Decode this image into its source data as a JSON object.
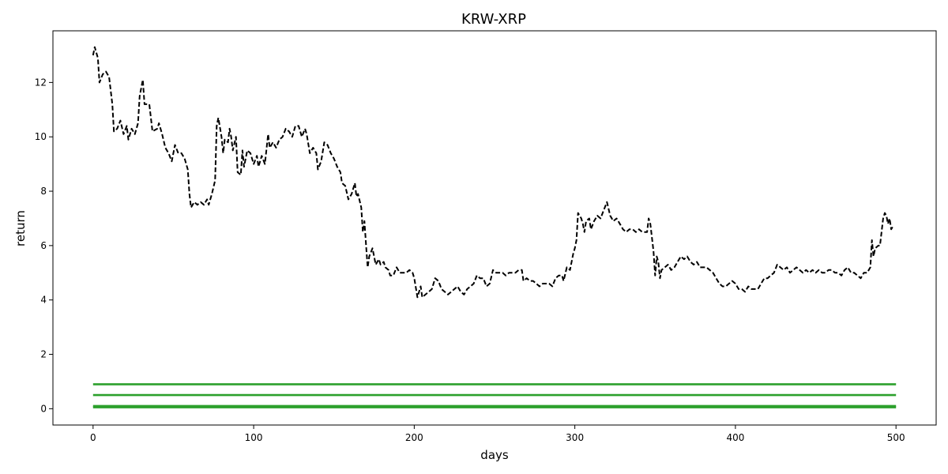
{
  "chart_data": {
    "type": "line",
    "title": "KRW-XRP",
    "xlabel": "days",
    "ylabel": "return",
    "xlim": [
      -25,
      525
    ],
    "ylim": [
      -0.6,
      13.9
    ],
    "xticks": [
      0,
      100,
      200,
      300,
      400,
      500
    ],
    "yticks": [
      0,
      2,
      4,
      6,
      8,
      10,
      12
    ],
    "grid": false,
    "legend": "none",
    "colors": {
      "price": "#000000",
      "levels": "#2ca02c"
    },
    "series": [
      {
        "style": "dashed",
        "color": "#000000",
        "points": [
          [
            0,
            13.0
          ],
          [
            1,
            13.3
          ],
          [
            3,
            12.9
          ],
          [
            4,
            12.0
          ],
          [
            6,
            12.3
          ],
          [
            8,
            12.4
          ],
          [
            10,
            12.2
          ],
          [
            12,
            11.2
          ],
          [
            13,
            10.2
          ],
          [
            15,
            10.3
          ],
          [
            17,
            10.6
          ],
          [
            19,
            10.1
          ],
          [
            21,
            10.4
          ],
          [
            22,
            9.9
          ],
          [
            24,
            10.3
          ],
          [
            26,
            10.1
          ],
          [
            28,
            10.5
          ],
          [
            29,
            11.5
          ],
          [
            31,
            12.1
          ],
          [
            32,
            11.2
          ],
          [
            35,
            11.2
          ],
          [
            37,
            10.2
          ],
          [
            40,
            10.3
          ],
          [
            41,
            10.5
          ],
          [
            43,
            10.1
          ],
          [
            45,
            9.6
          ],
          [
            47,
            9.4
          ],
          [
            49,
            9.1
          ],
          [
            51,
            9.7
          ],
          [
            53,
            9.4
          ],
          [
            55,
            9.4
          ],
          [
            57,
            9.2
          ],
          [
            59,
            8.8
          ],
          [
            60,
            7.9
          ],
          [
            61,
            7.4
          ],
          [
            63,
            7.6
          ],
          [
            65,
            7.5
          ],
          [
            67,
            7.6
          ],
          [
            69,
            7.5
          ],
          [
            71,
            7.7
          ],
          [
            72,
            7.5
          ],
          [
            74,
            7.9
          ],
          [
            76,
            8.4
          ],
          [
            77,
            10.4
          ],
          [
            78,
            10.7
          ],
          [
            80,
            10.0
          ],
          [
            81,
            9.4
          ],
          [
            82,
            9.9
          ],
          [
            84,
            9.8
          ],
          [
            85,
            10.3
          ],
          [
            86,
            10.0
          ],
          [
            87,
            9.5
          ],
          [
            89,
            10.0
          ],
          [
            90,
            8.7
          ],
          [
            92,
            8.6
          ],
          [
            93,
            9.5
          ],
          [
            94,
            8.9
          ],
          [
            96,
            9.5
          ],
          [
            98,
            9.4
          ],
          [
            100,
            9.0
          ],
          [
            102,
            9.3
          ],
          [
            103,
            8.9
          ],
          [
            105,
            9.3
          ],
          [
            107,
            9.0
          ],
          [
            109,
            10.1
          ],
          [
            110,
            9.6
          ],
          [
            112,
            9.8
          ],
          [
            114,
            9.6
          ],
          [
            116,
            9.9
          ],
          [
            118,
            10.0
          ],
          [
            120,
            10.3
          ],
          [
            122,
            10.2
          ],
          [
            124,
            10.0
          ],
          [
            126,
            10.4
          ],
          [
            128,
            10.4
          ],
          [
            130,
            10.0
          ],
          [
            132,
            10.3
          ],
          [
            133,
            10.1
          ],
          [
            135,
            9.4
          ],
          [
            137,
            9.6
          ],
          [
            139,
            9.4
          ],
          [
            140,
            8.8
          ],
          [
            142,
            9.1
          ],
          [
            144,
            9.8
          ],
          [
            146,
            9.7
          ],
          [
            148,
            9.4
          ],
          [
            150,
            9.2
          ],
          [
            152,
            8.9
          ],
          [
            154,
            8.7
          ],
          [
            155,
            8.3
          ],
          [
            157,
            8.2
          ],
          [
            159,
            7.7
          ],
          [
            161,
            7.9
          ],
          [
            163,
            8.3
          ],
          [
            164,
            7.8
          ],
          [
            165,
            7.9
          ],
          [
            167,
            7.4
          ],
          [
            168,
            6.5
          ],
          [
            169,
            6.9
          ],
          [
            170,
            6.0
          ],
          [
            171,
            5.2
          ],
          [
            172,
            5.6
          ],
          [
            174,
            5.9
          ],
          [
            176,
            5.3
          ],
          [
            178,
            5.5
          ],
          [
            179,
            5.3
          ],
          [
            181,
            5.4
          ],
          [
            182,
            5.2
          ],
          [
            184,
            5.1
          ],
          [
            185,
            4.9
          ],
          [
            187,
            4.9
          ],
          [
            189,
            5.2
          ],
          [
            191,
            5.0
          ],
          [
            193,
            5.0
          ],
          [
            195,
            5.0
          ],
          [
            197,
            5.1
          ],
          [
            199,
            5.0
          ],
          [
            200,
            4.8
          ],
          [
            202,
            4.1
          ],
          [
            204,
            4.5
          ],
          [
            205,
            4.1
          ],
          [
            207,
            4.2
          ],
          [
            209,
            4.3
          ],
          [
            211,
            4.4
          ],
          [
            213,
            4.8
          ],
          [
            215,
            4.7
          ],
          [
            217,
            4.4
          ],
          [
            219,
            4.3
          ],
          [
            221,
            4.2
          ],
          [
            223,
            4.3
          ],
          [
            225,
            4.4
          ],
          [
            227,
            4.5
          ],
          [
            229,
            4.3
          ],
          [
            231,
            4.2
          ],
          [
            233,
            4.4
          ],
          [
            235,
            4.5
          ],
          [
            237,
            4.6
          ],
          [
            239,
            4.9
          ],
          [
            241,
            4.8
          ],
          [
            243,
            4.8
          ],
          [
            245,
            4.5
          ],
          [
            247,
            4.6
          ],
          [
            249,
            5.1
          ],
          [
            251,
            5.0
          ],
          [
            253,
            5.0
          ],
          [
            255,
            5.0
          ],
          [
            257,
            4.9
          ],
          [
            259,
            5.0
          ],
          [
            261,
            5.0
          ],
          [
            263,
            5.0
          ],
          [
            265,
            5.1
          ],
          [
            267,
            5.1
          ],
          [
            268,
            4.7
          ],
          [
            270,
            4.8
          ],
          [
            272,
            4.7
          ],
          [
            274,
            4.7
          ],
          [
            276,
            4.6
          ],
          [
            278,
            4.5
          ],
          [
            280,
            4.6
          ],
          [
            282,
            4.6
          ],
          [
            284,
            4.6
          ],
          [
            286,
            4.5
          ],
          [
            288,
            4.8
          ],
          [
            290,
            4.9
          ],
          [
            292,
            4.9
          ],
          [
            293,
            4.7
          ],
          [
            295,
            5.2
          ],
          [
            297,
            5.1
          ],
          [
            299,
            5.7
          ],
          [
            300,
            5.9
          ],
          [
            301,
            6.2
          ],
          [
            302,
            7.2
          ],
          [
            304,
            7.0
          ],
          [
            305,
            6.8
          ],
          [
            306,
            6.5
          ],
          [
            307,
            6.9
          ],
          [
            309,
            7.0
          ],
          [
            310,
            6.6
          ],
          [
            312,
            6.9
          ],
          [
            314,
            7.1
          ],
          [
            316,
            7.0
          ],
          [
            318,
            7.3
          ],
          [
            320,
            7.6
          ],
          [
            322,
            7.1
          ],
          [
            324,
            6.9
          ],
          [
            326,
            7.0
          ],
          [
            328,
            6.8
          ],
          [
            330,
            6.6
          ],
          [
            332,
            6.5
          ],
          [
            334,
            6.6
          ],
          [
            336,
            6.6
          ],
          [
            338,
            6.5
          ],
          [
            340,
            6.6
          ],
          [
            342,
            6.5
          ],
          [
            344,
            6.5
          ],
          [
            345,
            6.5
          ],
          [
            346,
            7.0
          ],
          [
            347,
            6.8
          ],
          [
            348,
            6.3
          ],
          [
            349,
            5.8
          ],
          [
            350,
            4.9
          ],
          [
            351,
            5.6
          ],
          [
            352,
            5.4
          ],
          [
            353,
            4.8
          ],
          [
            354,
            5.1
          ],
          [
            356,
            5.2
          ],
          [
            358,
            5.3
          ],
          [
            360,
            5.1
          ],
          [
            362,
            5.2
          ],
          [
            364,
            5.4
          ],
          [
            366,
            5.6
          ],
          [
            368,
            5.5
          ],
          [
            370,
            5.6
          ],
          [
            372,
            5.4
          ],
          [
            374,
            5.3
          ],
          [
            376,
            5.4
          ],
          [
            378,
            5.2
          ],
          [
            380,
            5.2
          ],
          [
            382,
            5.2
          ],
          [
            384,
            5.1
          ],
          [
            386,
            5.0
          ],
          [
            388,
            4.8
          ],
          [
            390,
            4.6
          ],
          [
            392,
            4.5
          ],
          [
            394,
            4.5
          ],
          [
            396,
            4.6
          ],
          [
            398,
            4.7
          ],
          [
            400,
            4.6
          ],
          [
            402,
            4.4
          ],
          [
            404,
            4.4
          ],
          [
            406,
            4.3
          ],
          [
            408,
            4.5
          ],
          [
            410,
            4.4
          ],
          [
            412,
            4.4
          ],
          [
            414,
            4.4
          ],
          [
            416,
            4.6
          ],
          [
            418,
            4.8
          ],
          [
            420,
            4.8
          ],
          [
            422,
            4.9
          ],
          [
            424,
            5.0
          ],
          [
            426,
            5.3
          ],
          [
            428,
            5.2
          ],
          [
            430,
            5.1
          ],
          [
            432,
            5.2
          ],
          [
            434,
            5.0
          ],
          [
            436,
            5.1
          ],
          [
            438,
            5.2
          ],
          [
            440,
            5.1
          ],
          [
            442,
            5.0
          ],
          [
            444,
            5.1
          ],
          [
            446,
            5.0
          ],
          [
            448,
            5.1
          ],
          [
            450,
            5.0
          ],
          [
            452,
            5.1
          ],
          [
            454,
            5.0
          ],
          [
            456,
            5.0
          ],
          [
            458,
            5.1
          ],
          [
            460,
            5.1
          ],
          [
            462,
            5.0
          ],
          [
            464,
            5.0
          ],
          [
            466,
            4.9
          ],
          [
            468,
            5.1
          ],
          [
            470,
            5.2
          ],
          [
            472,
            5.0
          ],
          [
            474,
            5.0
          ],
          [
            476,
            4.9
          ],
          [
            478,
            4.8
          ],
          [
            480,
            5.0
          ],
          [
            482,
            5.0
          ],
          [
            484,
            5.2
          ],
          [
            485,
            6.2
          ],
          [
            486,
            5.6
          ],
          [
            487,
            5.9
          ],
          [
            489,
            6.0
          ],
          [
            490,
            6.0
          ],
          [
            491,
            6.5
          ],
          [
            492,
            7.0
          ],
          [
            493,
            7.2
          ],
          [
            494,
            7.1
          ],
          [
            495,
            6.8
          ],
          [
            496,
            7.0
          ],
          [
            497,
            6.6
          ],
          [
            498,
            6.7
          ],
          [
            499,
            6.7
          ]
        ]
      },
      {
        "style": "solid",
        "color": "#2ca02c",
        "x": [
          0,
          500
        ],
        "y": [
          0.9,
          0.9
        ]
      },
      {
        "style": "solid",
        "color": "#2ca02c",
        "x": [
          0,
          500
        ],
        "y": [
          0.5,
          0.5
        ]
      },
      {
        "style": "solid",
        "color": "#2ca02c",
        "x": [
          0,
          500
        ],
        "y": [
          0.1,
          0.1
        ]
      },
      {
        "style": "solid",
        "color": "#2ca02c",
        "x": [
          0,
          500
        ],
        "y": [
          0.05,
          0.05
        ]
      }
    ]
  }
}
